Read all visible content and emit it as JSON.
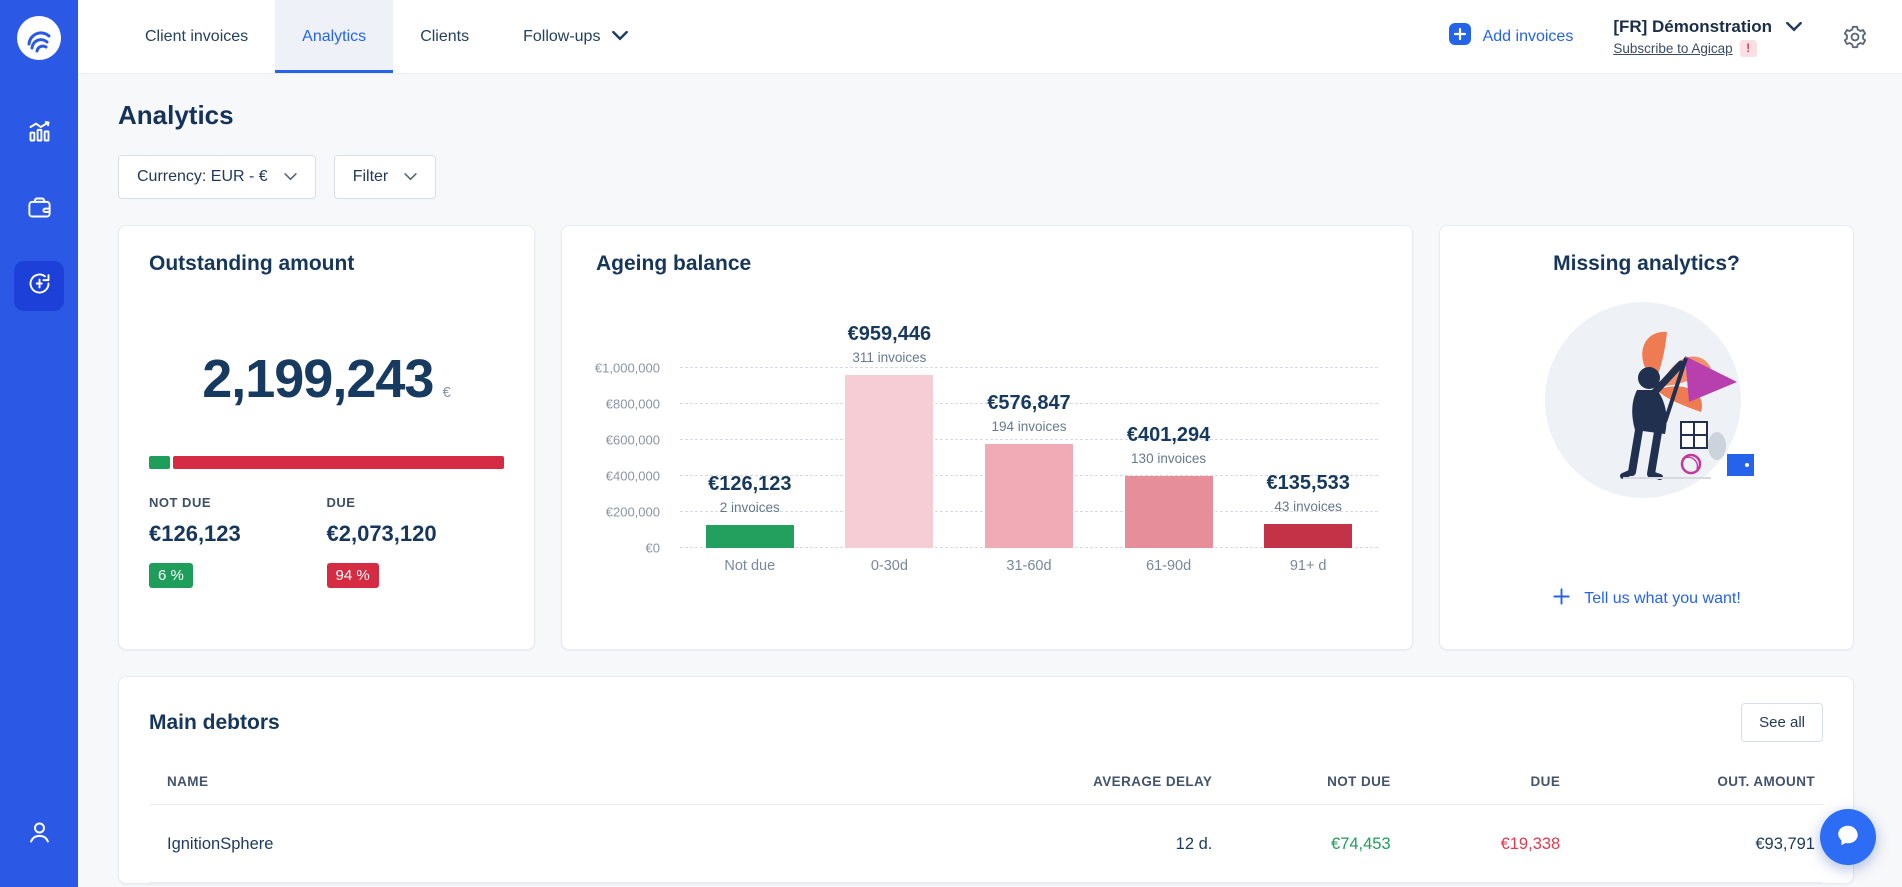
{
  "colors": {
    "sidebar": "#2b59e6",
    "sidebar_active": "#1c40d8",
    "accent": "#2563eb",
    "green": "#1e9e5a",
    "red": "#d52b43",
    "red_text": "#e13a50",
    "dark_navy": "#16365c"
  },
  "topnav": {
    "tabs": [
      {
        "label": "Client invoices",
        "active": false,
        "has_chevron": false
      },
      {
        "label": "Analytics",
        "active": true,
        "has_chevron": false
      },
      {
        "label": "Clients",
        "active": false,
        "has_chevron": false
      },
      {
        "label": "Follow-ups",
        "active": false,
        "has_chevron": true
      }
    ],
    "add_invoices_label": "Add invoices",
    "account_name": "[FR] Démonstration",
    "subscribe_label": "Subscribe to Agicap",
    "subscribe_badge": "!"
  },
  "page": {
    "title": "Analytics",
    "currency_dropdown": "Currency: EUR - €",
    "filter_dropdown": "Filter"
  },
  "outstanding": {
    "title": "Outstanding amount",
    "total": "2,199,243",
    "currency": "€",
    "not_due": {
      "label": "NOT DUE",
      "amount": "€126,123",
      "percent": "6 %",
      "percent_value": 6
    },
    "due": {
      "label": "DUE",
      "amount": "€2,073,120",
      "percent": "94 %",
      "percent_value": 94
    }
  },
  "ageing": {
    "title": "Ageing balance"
  },
  "chart_data": {
    "type": "bar",
    "title": "Ageing balance",
    "categories": [
      "Not due",
      "0-30d",
      "31-60d",
      "61-90d",
      "91+ d"
    ],
    "values": [
      126123,
      959446,
      576847,
      401294,
      135533
    ],
    "value_labels": [
      "€126,123",
      "€959,446",
      "€576,847",
      "€401,294",
      "€135,533"
    ],
    "invoice_counts": [
      "2 invoices",
      "311 invoices",
      "194 invoices",
      "130 invoices",
      "43 invoices"
    ],
    "bar_colors": [
      "#23a05d",
      "#f6cdd5",
      "#f0abb7",
      "#e78e9b",
      "#c43247"
    ],
    "ylim": [
      0,
      1000000
    ],
    "ytick_labels": [
      "€0",
      "€200,000",
      "€400,000",
      "€600,000",
      "€800,000",
      "€1,000,000"
    ],
    "grid": true,
    "xlabel": "",
    "ylabel": "",
    "legend": false
  },
  "missing": {
    "title": "Missing analytics?",
    "cta_label": "Tell us what you want!"
  },
  "debtors": {
    "title": "Main debtors",
    "see_all_label": "See all",
    "columns": [
      "NAME",
      "AVERAGE DELAY",
      "NOT DUE",
      "DUE",
      "OUT. AMOUNT"
    ],
    "rows": [
      {
        "name": "IgnitionSphere",
        "average_delay": "12 d.",
        "not_due": "€74,453",
        "due": "€19,338",
        "out_amount": "€93,791"
      }
    ]
  }
}
